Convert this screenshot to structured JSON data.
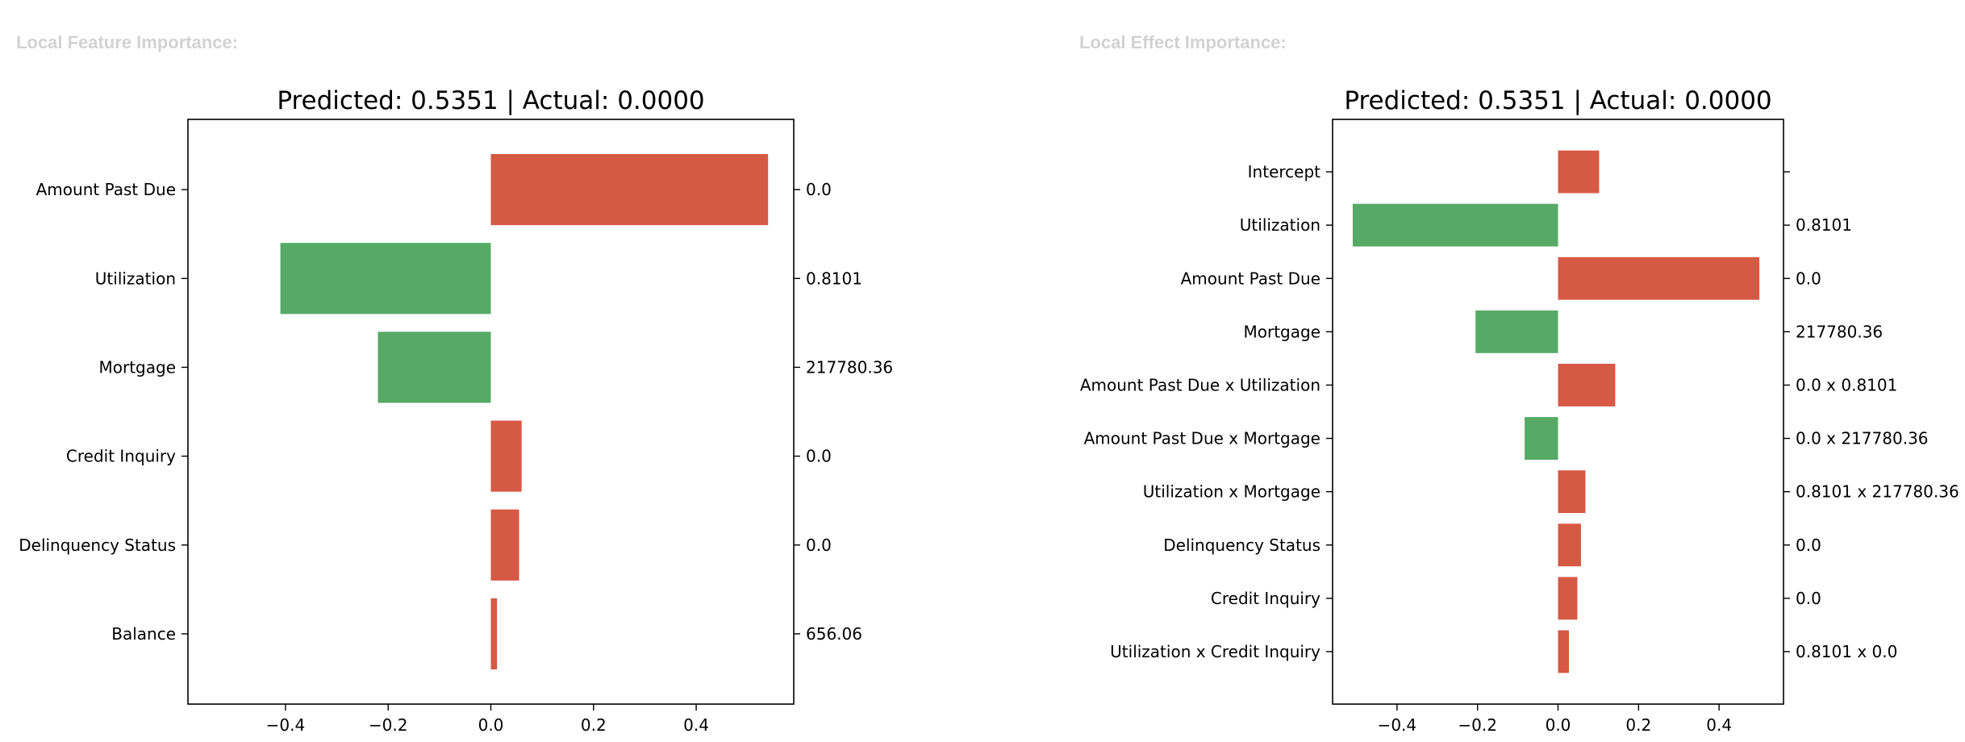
{
  "panels": {
    "left_heading": "Local Feature Importance:",
    "right_heading": "Local Effect Importance:"
  },
  "colors": {
    "positive": "#d65944",
    "negative": "#56aa66"
  },
  "chart_data": [
    {
      "type": "bar",
      "orientation": "horizontal",
      "title": "Predicted: 0.5351 | Actual: 0.0000",
      "categories": [
        "Amount Past Due",
        "Utilization",
        "Mortgage",
        "Credit Inquiry",
        "Delinquency Status",
        "Balance"
      ],
      "values": [
        0.54,
        -0.41,
        -0.22,
        0.06,
        0.055,
        0.012
      ],
      "feature_values": [
        "0.0",
        "0.8101",
        "217780.36",
        "0.0",
        "0.0",
        "656.06"
      ],
      "xlim": [
        -0.59,
        0.59
      ],
      "xticks": [
        "−0.4",
        "−0.2",
        "0.0",
        "0.2",
        "0.4"
      ],
      "xtick_values": [
        -0.4,
        -0.2,
        0,
        0.2,
        0.4
      ],
      "grid": false
    },
    {
      "type": "bar",
      "orientation": "horizontal",
      "title": "Predicted: 0.5351 | Actual: 0.0000",
      "categories": [
        "Intercept",
        "Utilization",
        "Amount Past Due",
        "Mortgage",
        "Amount Past Due x Utilization",
        "Amount Past Due x Mortgage",
        "Utilization x Mortgage",
        "Delinquency Status",
        "Credit Inquiry",
        "Utilization x Credit Inquiry"
      ],
      "values": [
        0.102,
        -0.51,
        0.5,
        -0.205,
        0.142,
        -0.083,
        0.068,
        0.057,
        0.048,
        0.027
      ],
      "feature_values": [
        "",
        "0.8101",
        "0.0",
        "217780.36",
        "0.0 x 0.8101",
        "0.0 x 217780.36",
        "0.8101 x 217780.36",
        "0.0",
        "0.0",
        "0.8101 x 0.0"
      ],
      "xlim": [
        -0.56,
        0.56
      ],
      "xticks": [
        "−0.4",
        "−0.2",
        "0.0",
        "0.2",
        "0.4"
      ],
      "xtick_values": [
        -0.4,
        -0.2,
        0,
        0.2,
        0.4
      ],
      "grid": false
    }
  ]
}
